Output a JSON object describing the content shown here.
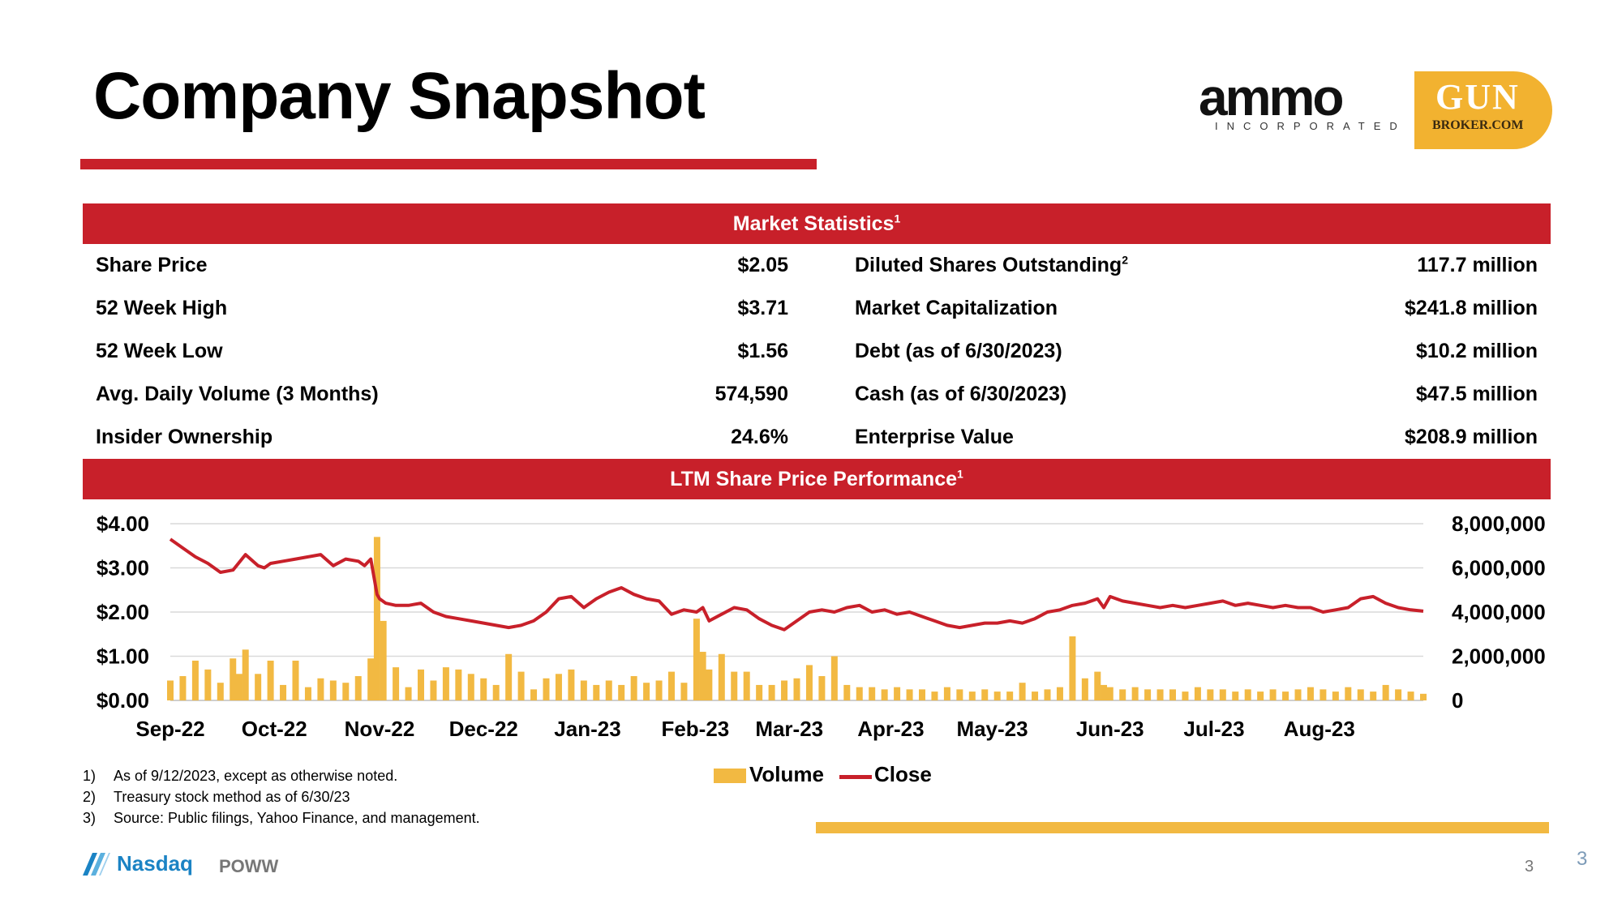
{
  "title": "Company Snapshot",
  "logo": {
    "ammo_word": "ammo",
    "ammo_sub": "INCORPORATED",
    "gun_word": "GUN",
    "broker_word": "BROKER.COM"
  },
  "market_stats": {
    "header": "Market Statistics",
    "header_sup": "1",
    "rows": [
      {
        "left_label": "Share Price",
        "left_value": "$2.05",
        "right_label": "Diluted Shares Outstanding",
        "right_sup": "2",
        "right_value": "117.7 million"
      },
      {
        "left_label": "52 Week High",
        "left_value": "$3.71",
        "right_label": "Market Capitalization",
        "right_sup": "",
        "right_value": "$241.8 million"
      },
      {
        "left_label": "52 Week Low",
        "left_value": "$1.56",
        "right_label": "Debt (as of 6/30/2023)",
        "right_sup": "",
        "right_value": "$10.2 million"
      },
      {
        "left_label": "Avg. Daily Volume (3 Months)",
        "left_value": "574,590",
        "right_label": "Cash (as of 6/30/2023)",
        "right_sup": "",
        "right_value": "$47.5 million"
      },
      {
        "left_label": "Insider Ownership",
        "left_value": "24.6%",
        "right_label": "Enterprise Value",
        "right_sup": "",
        "right_value": "$208.9 million"
      }
    ]
  },
  "perf_header": "LTM Share Price Performance",
  "perf_header_sup": "1",
  "chart_data": {
    "type": "bar+line",
    "title": "LTM Share Price Performance",
    "categories": [
      "Sep-22",
      "Oct-22",
      "Nov-22",
      "Dec-22",
      "Jan-23",
      "Feb-23",
      "Mar-23",
      "Apr-23",
      "May-23",
      "Jun-23",
      "Jul-23",
      "Aug-23"
    ],
    "category_positions": [
      0.0,
      0.083,
      0.167,
      0.25,
      0.333,
      0.419,
      0.494,
      0.575,
      0.656,
      0.75,
      0.833,
      0.917
    ],
    "y_left": {
      "label": "Close",
      "ticks": [
        "$4.00",
        "$3.00",
        "$2.00",
        "$1.00",
        "$0.00"
      ],
      "range": [
        0,
        4
      ]
    },
    "y_right": {
      "label": "Volume",
      "ticks": [
        "8,000,000",
        "6,000,000",
        "4,000,000",
        "2,000,000",
        "0"
      ],
      "range": [
        0,
        8000000
      ]
    },
    "legend": [
      "Volume",
      "Close"
    ],
    "series": [
      {
        "name": "Close",
        "color": "#c8202a",
        "x": [
          0.0,
          0.01,
          0.02,
          0.03,
          0.04,
          0.05,
          0.06,
          0.07,
          0.075,
          0.08,
          0.09,
          0.1,
          0.11,
          0.12,
          0.13,
          0.14,
          0.15,
          0.155,
          0.16,
          0.165,
          0.167,
          0.172,
          0.18,
          0.19,
          0.2,
          0.21,
          0.22,
          0.23,
          0.24,
          0.25,
          0.26,
          0.27,
          0.28,
          0.29,
          0.3,
          0.31,
          0.32,
          0.33,
          0.34,
          0.35,
          0.36,
          0.37,
          0.38,
          0.39,
          0.4,
          0.41,
          0.42,
          0.425,
          0.43,
          0.44,
          0.45,
          0.46,
          0.47,
          0.48,
          0.49,
          0.5,
          0.51,
          0.52,
          0.53,
          0.54,
          0.55,
          0.56,
          0.57,
          0.58,
          0.59,
          0.6,
          0.61,
          0.62,
          0.63,
          0.64,
          0.65,
          0.66,
          0.67,
          0.68,
          0.69,
          0.7,
          0.71,
          0.72,
          0.73,
          0.74,
          0.745,
          0.75,
          0.76,
          0.77,
          0.78,
          0.79,
          0.8,
          0.81,
          0.82,
          0.83,
          0.84,
          0.85,
          0.86,
          0.87,
          0.88,
          0.89,
          0.9,
          0.91,
          0.92,
          0.93,
          0.94,
          0.95,
          0.96,
          0.97,
          0.98,
          0.99,
          1.0
        ],
        "values": [
          3.65,
          3.45,
          3.25,
          3.1,
          2.9,
          2.95,
          3.3,
          3.05,
          3.0,
          3.1,
          3.15,
          3.2,
          3.25,
          3.3,
          3.05,
          3.2,
          3.15,
          3.05,
          3.2,
          2.4,
          2.3,
          2.2,
          2.15,
          2.15,
          2.2,
          2.0,
          1.9,
          1.85,
          1.8,
          1.75,
          1.7,
          1.65,
          1.7,
          1.8,
          2.0,
          2.3,
          2.35,
          2.1,
          2.3,
          2.45,
          2.55,
          2.4,
          2.3,
          2.25,
          1.95,
          2.05,
          2.0,
          2.1,
          1.8,
          1.95,
          2.1,
          2.05,
          1.85,
          1.7,
          1.6,
          1.8,
          2.0,
          2.05,
          2.0,
          2.1,
          2.15,
          2.0,
          2.05,
          1.95,
          2.0,
          1.9,
          1.8,
          1.7,
          1.65,
          1.7,
          1.75,
          1.75,
          1.8,
          1.75,
          1.85,
          2.0,
          2.05,
          2.15,
          2.2,
          2.3,
          2.1,
          2.35,
          2.25,
          2.2,
          2.15,
          2.1,
          2.15,
          2.1,
          2.15,
          2.2,
          2.25,
          2.15,
          2.2,
          2.15,
          2.1,
          2.15,
          2.1,
          2.1,
          2.0,
          2.05,
          2.1,
          2.3,
          2.35,
          2.2,
          2.1,
          2.05,
          2.02
        ]
      },
      {
        "name": "Volume",
        "color": "#f2b942",
        "x": [
          0.0,
          0.01,
          0.02,
          0.03,
          0.04,
          0.05,
          0.055,
          0.06,
          0.07,
          0.08,
          0.09,
          0.1,
          0.11,
          0.12,
          0.13,
          0.14,
          0.15,
          0.16,
          0.165,
          0.17,
          0.18,
          0.19,
          0.2,
          0.21,
          0.22,
          0.23,
          0.24,
          0.25,
          0.26,
          0.27,
          0.28,
          0.29,
          0.3,
          0.31,
          0.32,
          0.33,
          0.34,
          0.35,
          0.36,
          0.37,
          0.38,
          0.39,
          0.4,
          0.41,
          0.42,
          0.425,
          0.43,
          0.44,
          0.45,
          0.46,
          0.47,
          0.48,
          0.49,
          0.5,
          0.51,
          0.52,
          0.53,
          0.54,
          0.55,
          0.56,
          0.57,
          0.58,
          0.59,
          0.6,
          0.61,
          0.62,
          0.63,
          0.64,
          0.65,
          0.66,
          0.67,
          0.68,
          0.69,
          0.7,
          0.71,
          0.72,
          0.73,
          0.74,
          0.745,
          0.75,
          0.76,
          0.77,
          0.78,
          0.79,
          0.8,
          0.81,
          0.82,
          0.83,
          0.84,
          0.85,
          0.86,
          0.87,
          0.88,
          0.89,
          0.9,
          0.91,
          0.92,
          0.93,
          0.94,
          0.95,
          0.96,
          0.97,
          0.98,
          0.99,
          1.0
        ],
        "values": [
          900000,
          1100000,
          1800000,
          1400000,
          800000,
          1900000,
          1200000,
          2300000,
          1200000,
          1800000,
          700000,
          1800000,
          600000,
          1000000,
          900000,
          800000,
          1100000,
          1900000,
          7400000,
          3600000,
          1500000,
          600000,
          1400000,
          900000,
          1500000,
          1400000,
          1200000,
          1000000,
          700000,
          2100000,
          1300000,
          500000,
          1000000,
          1200000,
          1400000,
          900000,
          700000,
          900000,
          700000,
          1100000,
          800000,
          900000,
          1300000,
          800000,
          3700000,
          2200000,
          1400000,
          2100000,
          1300000,
          1300000,
          700000,
          700000,
          900000,
          1000000,
          1600000,
          1100000,
          2000000,
          700000,
          600000,
          600000,
          500000,
          600000,
          500000,
          500000,
          400000,
          600000,
          500000,
          400000,
          500000,
          400000,
          400000,
          800000,
          400000,
          500000,
          600000,
          2900000,
          1000000,
          1300000,
          700000,
          600000,
          500000,
          600000,
          500000,
          500000,
          500000,
          400000,
          600000,
          500000,
          500000,
          400000,
          500000,
          400000,
          500000,
          400000,
          500000,
          600000,
          500000,
          400000,
          600000,
          500000,
          400000,
          700000,
          500000,
          400000,
          300000
        ]
      }
    ]
  },
  "legend": {
    "volume": "Volume",
    "close": "Close"
  },
  "footnotes": [
    {
      "num": "1)",
      "text": "As of 9/12/2023, except as otherwise noted."
    },
    {
      "num": "2)",
      "text": "Treasury stock method as of 6/30/23"
    },
    {
      "num": "3)",
      "text": "Source: Public filings, Yahoo Finance, and management."
    }
  ],
  "footer": {
    "exchange": "Nasdaq",
    "ticker": "POWW",
    "page_inner": "3",
    "page_outer": "3"
  }
}
